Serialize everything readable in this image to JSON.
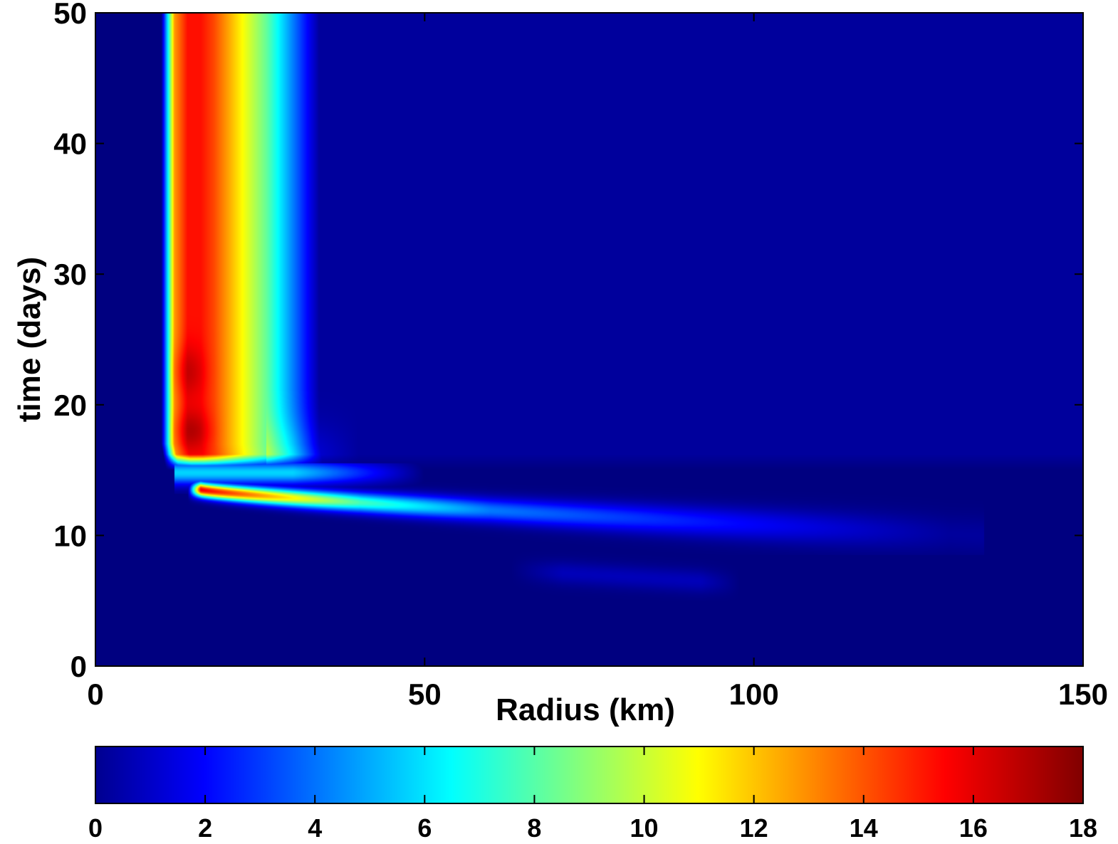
{
  "chart_data": {
    "type": "heatmap",
    "title": "",
    "xlabel": "Radius (km)",
    "ylabel": "time (days)",
    "xlim": [
      0,
      150
    ],
    "ylim": [
      0,
      50
    ],
    "xticks": [
      "0",
      "50",
      "100",
      "150"
    ],
    "yticks": [
      "0",
      "10",
      "20",
      "30",
      "40",
      "50"
    ],
    "colormap": "jet",
    "clim": [
      0,
      18
    ],
    "colorbar": {
      "orientation": "horizontal",
      "placement": "bottom",
      "ticks": [
        "0",
        "2",
        "4",
        "6",
        "8",
        "10",
        "12",
        "14",
        "16",
        "18"
      ]
    },
    "background_value": 0,
    "features": [
      {
        "name": "mature-eyewall",
        "t_range": [
          15.5,
          50
        ],
        "radius_profile_km": [
          10,
          12,
          14,
          16,
          18,
          20,
          22,
          24,
          26,
          28,
          30,
          32,
          34
        ],
        "value_profile": [
          0,
          13,
          15.5,
          15.5,
          14.5,
          13,
          11.5,
          10,
          8.5,
          6.5,
          4.5,
          2.5,
          0.5
        ],
        "max_value_near": [
          {
            "t": 22.5,
            "r": 14,
            "value": 16.8
          },
          {
            "t": 18,
            "r": 14,
            "value": 17
          }
        ]
      },
      {
        "name": "contracting-band",
        "t_range": [
          9.5,
          14.5
        ],
        "peak": {
          "t": 13.2,
          "r": 18,
          "value": 16
        },
        "outer_extent_km": 130,
        "outer_value": 2
      },
      {
        "name": "weak-early-band",
        "t_range": [
          5.5,
          8.5
        ],
        "peak": {
          "t": 6.8,
          "r": 82,
          "value": 1
        }
      }
    ]
  },
  "colors": {
    "background": "#000080",
    "frame": "#000000"
  }
}
